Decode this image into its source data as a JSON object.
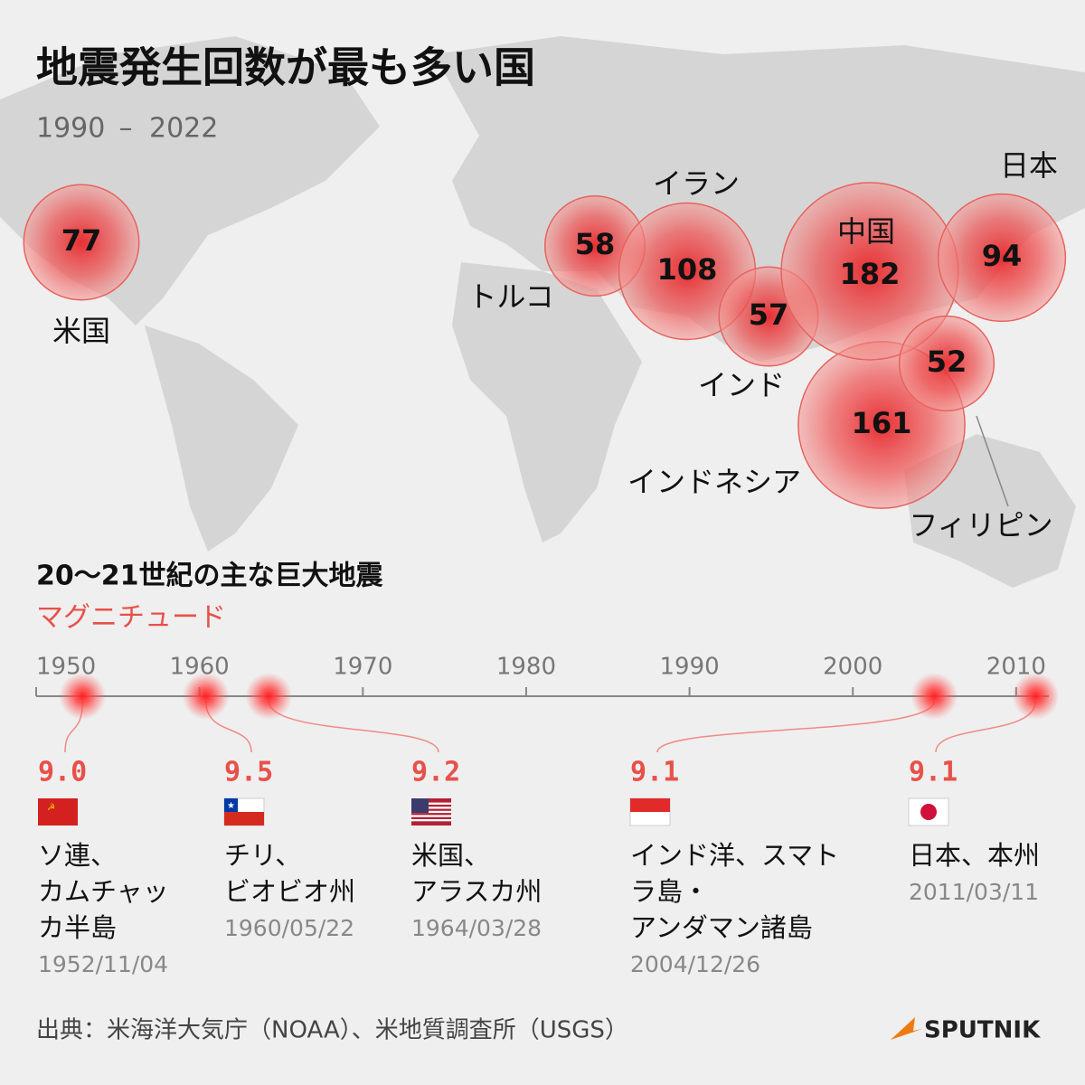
{
  "title": "地震発生回数が最も多い国",
  "period": {
    "start": "1990",
    "separator": "–",
    "end": "2022"
  },
  "countries": [
    {
      "name": "米国",
      "count": 77
    },
    {
      "name": "トルコ",
      "count": 58
    },
    {
      "name": "イラン",
      "count": 108
    },
    {
      "name": "インド",
      "count": 57
    },
    {
      "name": "中国",
      "count": 182
    },
    {
      "name": "日本",
      "count": 94
    },
    {
      "name": "フィリピン",
      "count": 52
    },
    {
      "name": "インドネシア",
      "count": 161
    }
  ],
  "timeline": {
    "title": "20〜21世紀の主な巨大地震",
    "subtitle": "マグニチュード",
    "xlim": [
      1950,
      2012
    ],
    "xticks": [
      1950,
      1960,
      1970,
      1980,
      1990,
      2000,
      2010
    ],
    "events": [
      {
        "magnitude": "9.0",
        "place": [
          "ソ連、",
          "カムチャッ",
          "カ半島"
        ],
        "date": "1952/11/04"
      },
      {
        "magnitude": "9.5",
        "place": [
          "チリ、",
          "ビオビオ州"
        ],
        "date": "1960/05/22"
      },
      {
        "magnitude": "9.2",
        "place": [
          "米国、",
          "アラスカ州"
        ],
        "date": "1964/03/28"
      },
      {
        "magnitude": "9.1",
        "place": [
          "インド洋、スマト",
          "ラ島・",
          "アンダマン諸島"
        ],
        "date": "2004/12/26"
      },
      {
        "magnitude": "9.1",
        "place": [
          "日本、本州"
        ],
        "date": "2011/03/11"
      }
    ]
  },
  "source": "出典：米海洋大気庁（NOAA）、米地質調査所（USGS）",
  "brand": "SPUTNIK"
}
